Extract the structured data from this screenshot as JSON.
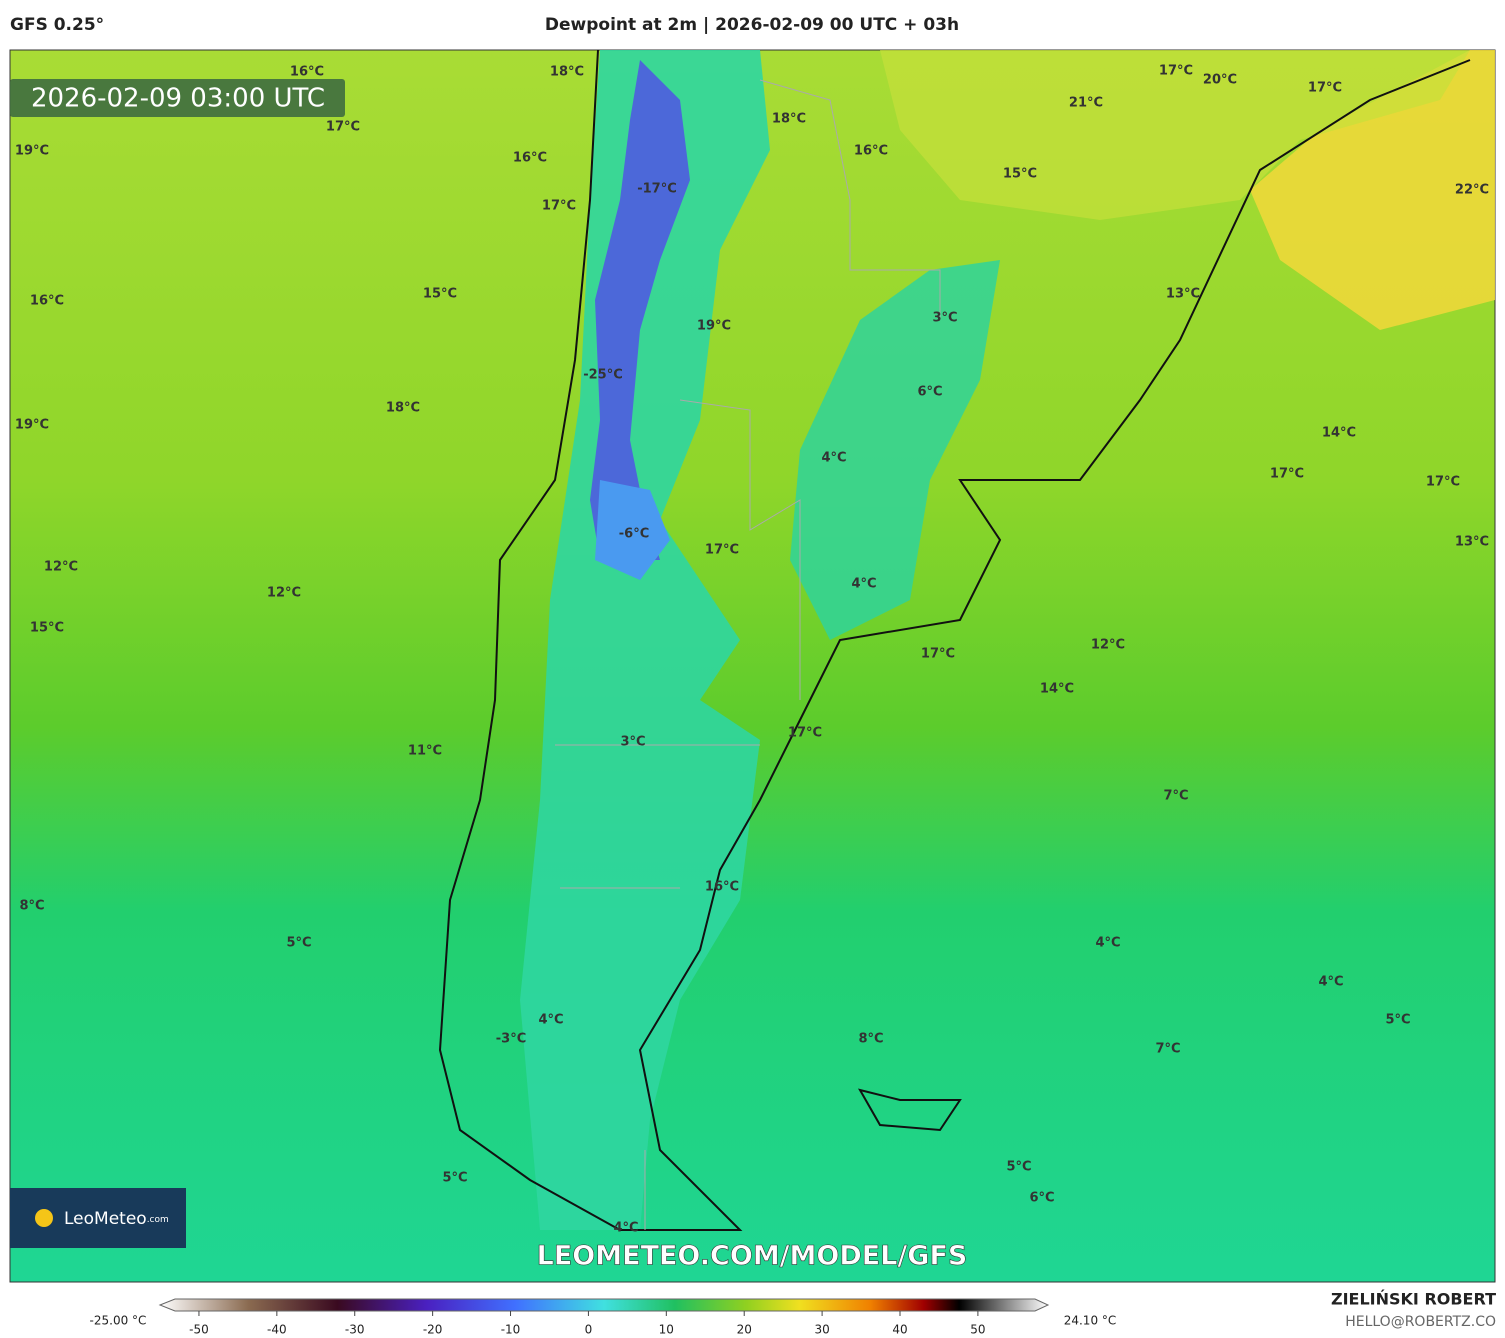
{
  "header": {
    "model": "GFS 0.25°",
    "title": "Dewpoint at 2m | 2026-02-09 00 UTC + 03h"
  },
  "map": {
    "timestamp": "2026-02-09 03:00 UTC",
    "labels": [
      "16°C",
      "18°C",
      "17°C",
      "19°C",
      "16°C",
      "17°C",
      "-17°C",
      "18°C",
      "16°C",
      "15°C",
      "17°C",
      "20°C",
      "21°C",
      "17°C",
      "22°C",
      "16°C",
      "15°C",
      "19°C",
      "3°C",
      "13°C",
      "-25°C",
      "6°C",
      "18°C",
      "19°C",
      "14°C",
      "4°C",
      "17°C",
      "17°C",
      "-6°C",
      "17°C",
      "13°C",
      "12°C",
      "12°C",
      "4°C",
      "15°C",
      "17°C",
      "12°C",
      "14°C",
      "17°C",
      "3°C",
      "11°C",
      "7°C",
      "16°C",
      "8°C",
      "5°C",
      "4°C",
      "4°C",
      "5°C",
      "4°C",
      "-3°C",
      "8°C",
      "7°C",
      "5°C",
      "6°C",
      "5°C",
      "4°C"
    ],
    "watermark": "LEOMETEO.COM/MODEL/GFS",
    "logo": {
      "name": "LeoMeteo",
      "suffix": ".com"
    }
  },
  "colorbar": {
    "lim": [
      -55,
      59
    ],
    "ticks": [
      -50,
      -40,
      -30,
      -20,
      -10,
      0,
      10,
      20,
      30,
      40,
      50
    ],
    "min_label": "-25.00 °C",
    "max_label": "24.10 °C"
  },
  "credits": {
    "author": "ZIELIŃSKI ROBERT",
    "contact": "HELLO@ROBERTZ.CO"
  }
}
